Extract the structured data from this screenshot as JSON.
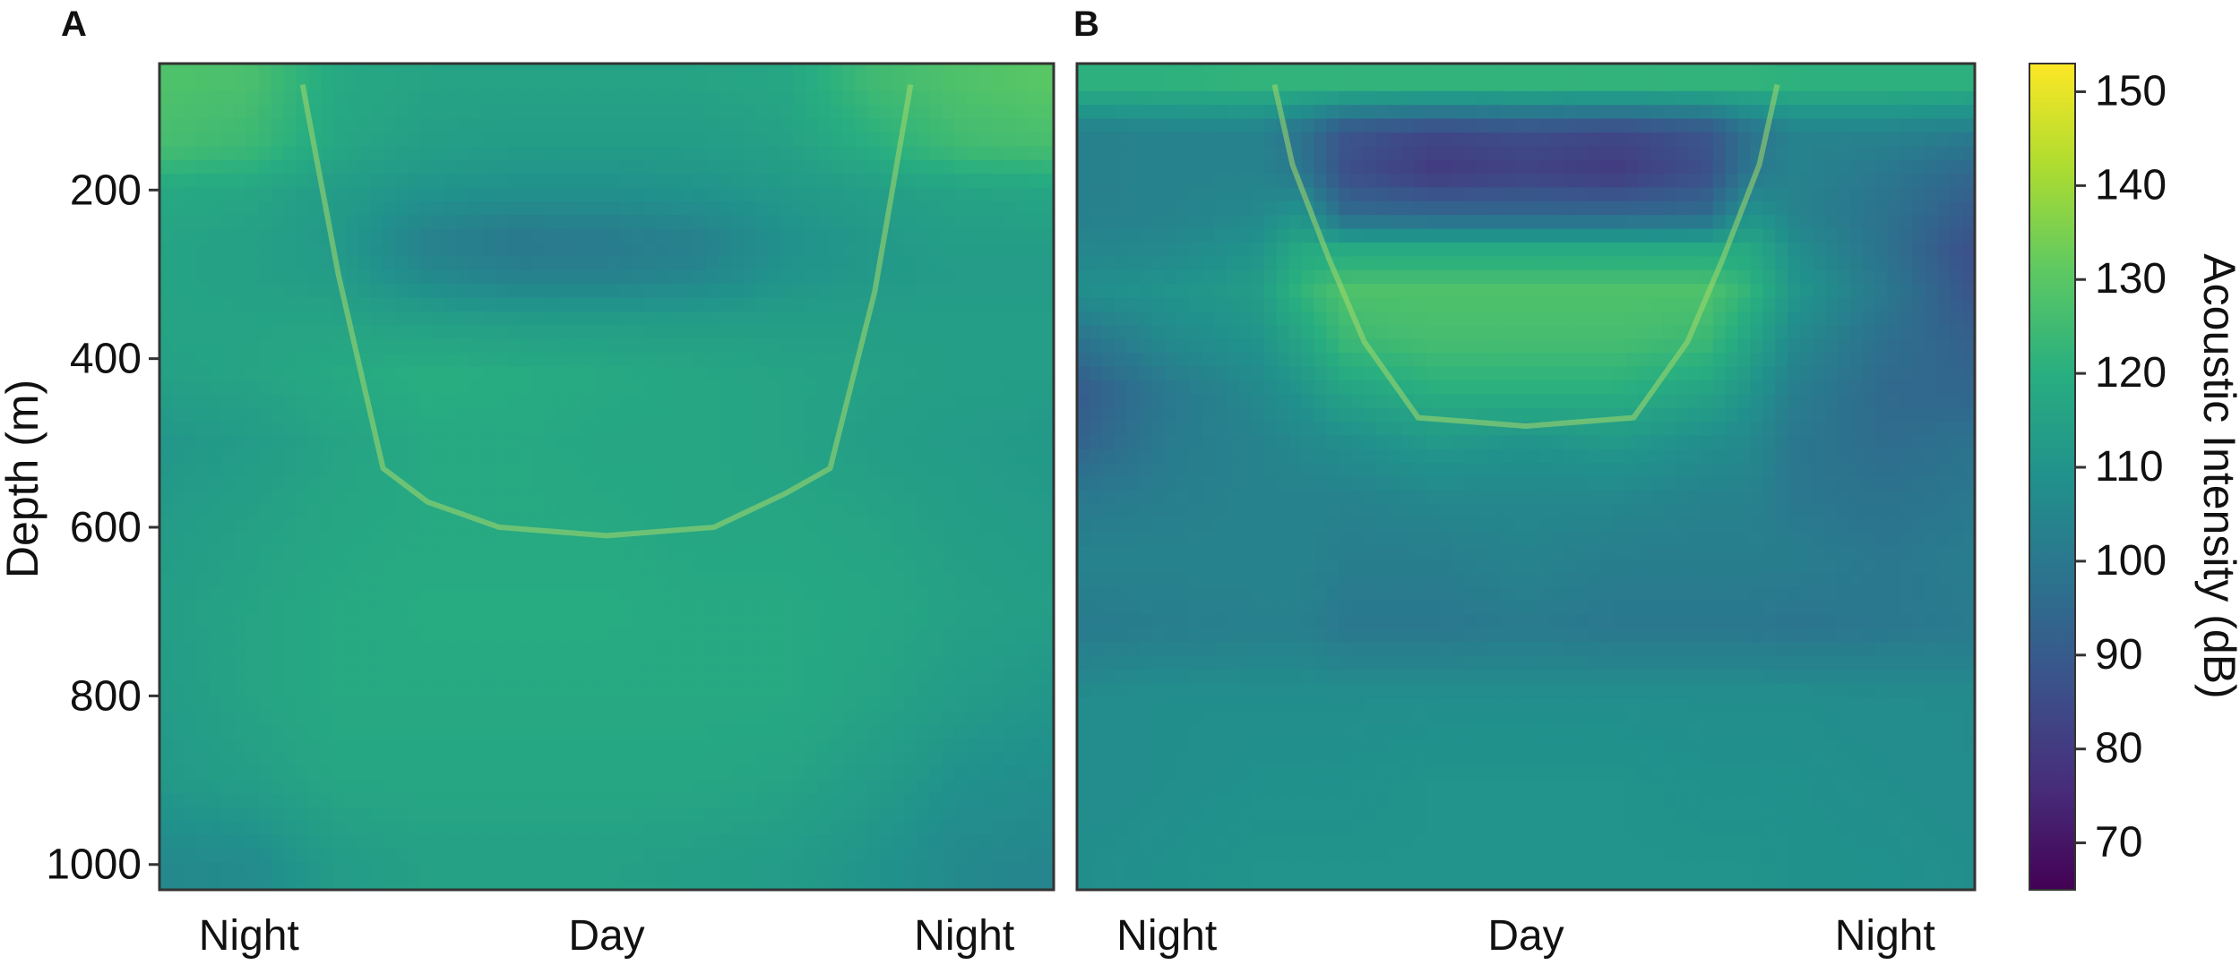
{
  "chart_data": [
    {
      "type": "heatmap",
      "panel_label": "A",
      "x_tick_labels": [
        "Night",
        "Day",
        "Night"
      ],
      "ylabel": "Depth (m)",
      "y_ticks": [
        200,
        400,
        600,
        800,
        1000
      ],
      "ylim": [
        1030,
        50
      ],
      "y_axis_inverted": true,
      "colormap": "viridis",
      "time_fraction": [
        0,
        0.1,
        0.2,
        0.3,
        0.4,
        0.5,
        0.6,
        0.7,
        0.8,
        0.9,
        1.0
      ],
      "depth_m": [
        75,
        150,
        200,
        260,
        300,
        360,
        420,
        500,
        600,
        700,
        800,
        900,
        1000
      ],
      "intensity_db": [
        [
          128,
          127,
          118,
          116,
          116,
          116,
          116,
          117,
          125,
          128,
          130
        ],
        [
          126,
          124,
          117,
          114,
          113,
          113,
          113,
          115,
          120,
          125,
          126
        ],
        [
          118,
          117,
          113,
          110,
          109,
          109,
          110,
          112,
          114,
          116,
          117
        ],
        [
          116,
          115,
          112,
          103,
          100,
          101,
          103,
          109,
          112,
          114,
          114
        ],
        [
          116,
          115,
          113,
          106,
          103,
          103,
          105,
          110,
          112,
          113,
          113
        ],
        [
          116,
          116,
          116,
          115,
          114,
          114,
          114,
          114,
          114,
          114,
          114
        ],
        [
          115,
          116,
          118,
          120,
          119,
          118,
          117,
          116,
          115,
          114,
          114
        ],
        [
          111,
          113,
          116,
          118,
          118,
          117,
          117,
          116,
          114,
          113,
          112
        ],
        [
          113,
          115,
          117,
          118,
          118,
          118,
          117,
          117,
          116,
          114,
          113
        ],
        [
          114,
          116,
          118,
          119,
          119,
          119,
          118,
          118,
          117,
          115,
          114
        ],
        [
          113,
          116,
          118,
          118,
          118,
          118,
          118,
          118,
          116,
          113,
          111
        ],
        [
          112,
          114,
          117,
          117,
          117,
          117,
          117,
          116,
          113,
          109,
          108
        ],
        [
          106,
          107,
          113,
          115,
          115,
          115,
          114,
          113,
          110,
          106,
          105
        ]
      ],
      "migration_path": [
        [
          0.16,
          75
        ],
        [
          0.2,
          300
        ],
        [
          0.25,
          530
        ],
        [
          0.3,
          570
        ],
        [
          0.38,
          600
        ],
        [
          0.5,
          610
        ],
        [
          0.62,
          600
        ],
        [
          0.7,
          560
        ],
        [
          0.75,
          530
        ],
        [
          0.8,
          320
        ],
        [
          0.84,
          75
        ]
      ]
    },
    {
      "type": "heatmap",
      "panel_label": "B",
      "x_tick_labels": [
        "Night",
        "Day",
        "Night"
      ],
      "ylim": [
        1030,
        50
      ],
      "y_axis_inverted": true,
      "colormap": "viridis",
      "time_fraction": [
        0,
        0.1,
        0.2,
        0.25,
        0.3,
        0.4,
        0.5,
        0.6,
        0.7,
        0.75,
        0.8,
        0.9,
        1.0
      ],
      "depth_m": [
        75,
        130,
        180,
        230,
        270,
        320,
        380,
        440,
        500,
        560,
        640,
        720,
        800,
        900,
        1000
      ],
      "intensity_db": [
        [
          121,
          121,
          122,
          122,
          122,
          122,
          122,
          122,
          122,
          122,
          121,
          121,
          121
        ],
        [
          103,
          104,
          104,
          98,
          88,
          84,
          86,
          84,
          88,
          98,
          104,
          104,
          102
        ],
        [
          103,
          104,
          104,
          100,
          86,
          80,
          82,
          80,
          86,
          100,
          104,
          100,
          94
        ],
        [
          103,
          104,
          106,
          111,
          96,
          95,
          95,
          95,
          96,
          111,
          104,
          98,
          90
        ],
        [
          105,
          106,
          110,
          118,
          118,
          118,
          118,
          118,
          118,
          118,
          108,
          98,
          86
        ],
        [
          108,
          110,
          113,
          122,
          128,
          128,
          128,
          128,
          128,
          122,
          111,
          100,
          88
        ],
        [
          98,
          106,
          110,
          116,
          124,
          126,
          126,
          126,
          124,
          116,
          106,
          97,
          92
        ],
        [
          90,
          100,
          106,
          110,
          116,
          120,
          120,
          120,
          116,
          110,
          102,
          95,
          94
        ],
        [
          93,
          101,
          104,
          106,
          108,
          112,
          110,
          112,
          108,
          106,
          100,
          96,
          98
        ],
        [
          100,
          102,
          104,
          104,
          104,
          106,
          106,
          106,
          104,
          104,
          100,
          98,
          100
        ],
        [
          104,
          104,
          104,
          104,
          102,
          102,
          104,
          102,
          102,
          102,
          102,
          100,
          102
        ],
        [
          101,
          102,
          103,
          103,
          100,
          100,
          101,
          100,
          100,
          100,
          99,
          100,
          101
        ],
        [
          107,
          108,
          108,
          108,
          108,
          108,
          108,
          108,
          108,
          108,
          108,
          107,
          107
        ],
        [
          107,
          108,
          109,
          109,
          109,
          110,
          110,
          110,
          109,
          109,
          109,
          108,
          107
        ],
        [
          108,
          109,
          110,
          110,
          110,
          110,
          110,
          110,
          110,
          110,
          109,
          109,
          108
        ]
      ],
      "migration_path": [
        [
          0.22,
          75
        ],
        [
          0.24,
          170
        ],
        [
          0.28,
          280
        ],
        [
          0.32,
          380
        ],
        [
          0.38,
          470
        ],
        [
          0.5,
          480
        ],
        [
          0.62,
          470
        ],
        [
          0.68,
          380
        ],
        [
          0.72,
          280
        ],
        [
          0.76,
          170
        ],
        [
          0.78,
          75
        ]
      ]
    }
  ],
  "colorbar": {
    "label": "Acoustic Intensity (dB)",
    "ticks": [
      70,
      80,
      90,
      100,
      110,
      120,
      130,
      140,
      150
    ],
    "range": [
      65,
      153
    ],
    "colormap": "viridis"
  }
}
